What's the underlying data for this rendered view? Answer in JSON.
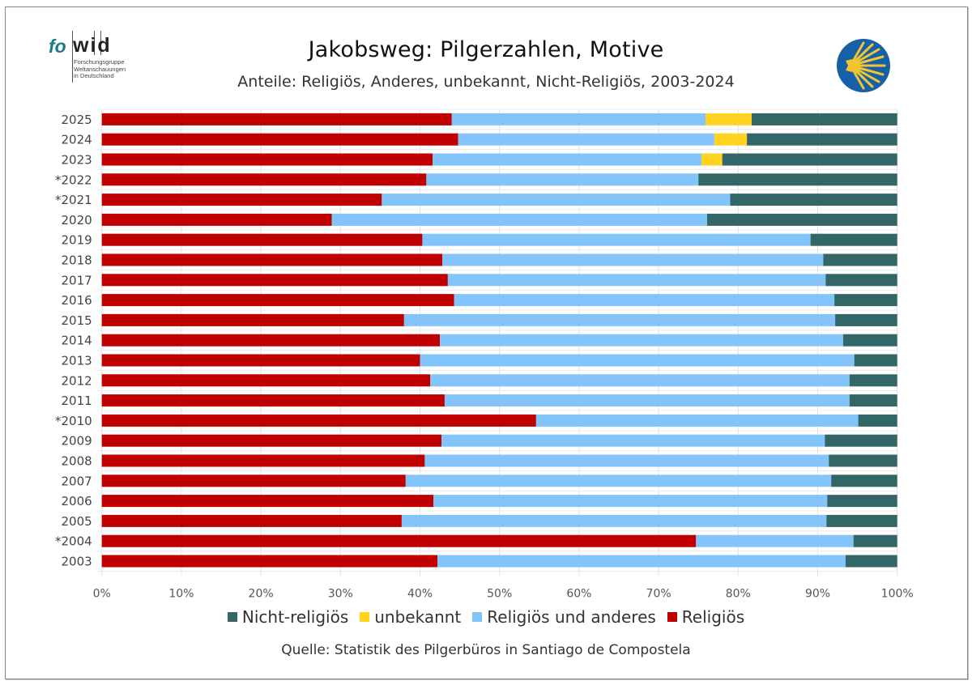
{
  "header": {
    "title": "Jakobsweg: Pilgerzahlen, Motive",
    "subtitle": "Anteile: Religiös, Anderes, unbekannt, Nicht-Religiös, 2003-2024"
  },
  "logo": {
    "brand_fo": "fo",
    "brand_wid": "wid",
    "line1": "Forschungsgruppe",
    "line2": "Weltanschauungen",
    "line3": "in Deutschland"
  },
  "icons": {
    "shell": "scallop-shell-icon"
  },
  "colors": {
    "religioes": "#C00000",
    "religioes_und_anderes": "#83C5FB",
    "unbekannt": "#FFD320",
    "nicht_religioes": "#336666",
    "logo_teal": "#1A7A8A",
    "shell_blue": "#1660A8",
    "shell_yellow": "#F4C430"
  },
  "source": "Quelle: Statistik des Pilgerbüros in Santiago de Compostela",
  "chart_data": {
    "type": "bar",
    "orientation": "horizontal",
    "stacked": true,
    "title": "Jakobsweg: Pilgerzahlen, Motive",
    "xlabel": "",
    "ylabel": "",
    "xlim": [
      0,
      100
    ],
    "unit": "%",
    "grid": true,
    "legend_position": "bottom",
    "x_ticks": [
      "0%",
      "10%",
      "20%",
      "30%",
      "40%",
      "50%",
      "60%",
      "70%",
      "80%",
      "90%",
      "100%"
    ],
    "categories": [
      "2025",
      "2024",
      "2023",
      "*2022",
      "*2021",
      "2020",
      "2019",
      "2018",
      "2017",
      "2016",
      "2015",
      "2014",
      "2013",
      "2012",
      "2011",
      "*2010",
      "2009",
      "2008",
      "2007",
      "2006",
      "2005",
      "*2004",
      "2003"
    ],
    "series": [
      {
        "name": "Religiös",
        "color": "#C00000",
        "values": [
          44.0,
          44.8,
          41.6,
          40.8,
          35.2,
          28.9,
          40.3,
          42.8,
          43.5,
          44.3,
          38.0,
          42.5,
          40.0,
          41.3,
          43.1,
          54.6,
          42.7,
          40.6,
          38.2,
          41.7,
          37.7,
          74.7,
          42.2
        ]
      },
      {
        "name": "Religiös und anderes",
        "color": "#83C5FB",
        "values": [
          31.9,
          32.2,
          33.8,
          34.2,
          43.8,
          47.2,
          48.8,
          47.9,
          47.5,
          47.8,
          54.2,
          50.7,
          54.6,
          52.7,
          50.9,
          40.5,
          48.2,
          50.8,
          53.5,
          49.5,
          53.4,
          19.8,
          51.3
        ]
      },
      {
        "name": "unbekannt",
        "color": "#FFD320",
        "values": [
          5.8,
          4.1,
          2.6,
          0,
          0,
          0,
          0,
          0,
          0,
          0,
          0,
          0,
          0,
          0,
          0,
          0,
          0,
          0,
          0,
          0,
          0,
          0,
          0
        ]
      },
      {
        "name": "Nicht-religiös",
        "color": "#336666",
        "values": [
          18.3,
          18.9,
          22.0,
          25.0,
          21.0,
          23.9,
          10.9,
          9.3,
          9.0,
          7.9,
          7.8,
          6.8,
          5.4,
          6.0,
          6.0,
          4.9,
          9.1,
          8.6,
          8.3,
          8.8,
          8.9,
          5.5,
          6.5
        ]
      }
    ],
    "legend": [
      "Nicht-religiös",
      "unbekannt",
      "Religiös und anderes",
      "Religiös"
    ]
  }
}
